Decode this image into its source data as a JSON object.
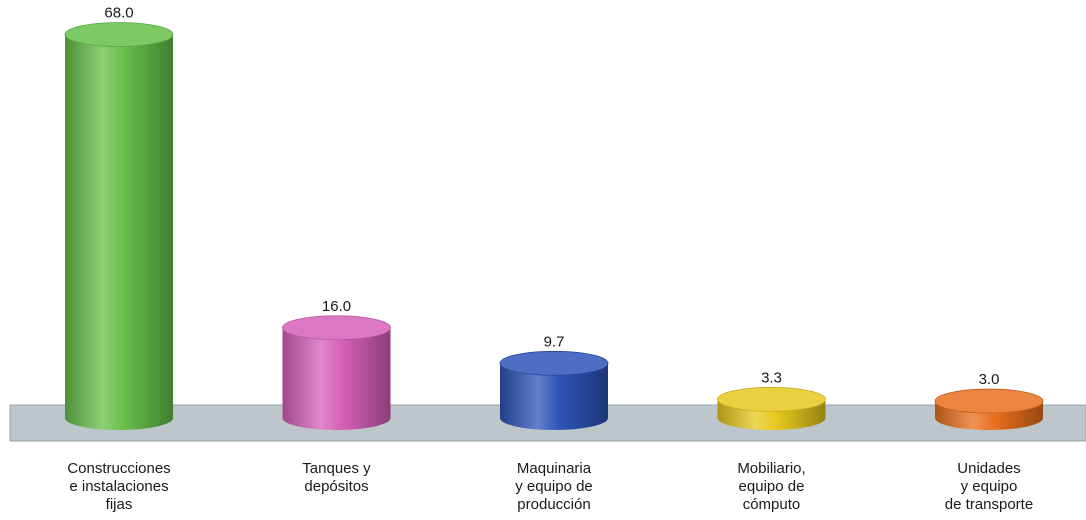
{
  "chart_data": {
    "type": "bar",
    "style": "3d-cylinder",
    "categories": [
      [
        "Construcciones",
        "e instalaciones",
        "fijas"
      ],
      [
        "Tanques y",
        "depósitos"
      ],
      [
        "Maquinaria",
        "y equipo de",
        "producción"
      ],
      [
        "Mobiliario,",
        "equipo de",
        "cómputo"
      ],
      [
        "Unidades",
        "y equipo",
        "de transporte"
      ]
    ],
    "values": [
      68.0,
      16.0,
      9.7,
      3.3,
      3.0
    ],
    "value_labels": [
      "68.0",
      "16.0",
      "9.7",
      "3.3",
      "3.0"
    ],
    "colors": [
      "#66c04a",
      "#d660b8",
      "#2e54b8",
      "#e6c81e",
      "#e8701e"
    ],
    "floor_color": "#bcc6cb",
    "ylim": [
      0,
      70
    ],
    "title": "",
    "xlabel": "",
    "ylabel": ""
  }
}
